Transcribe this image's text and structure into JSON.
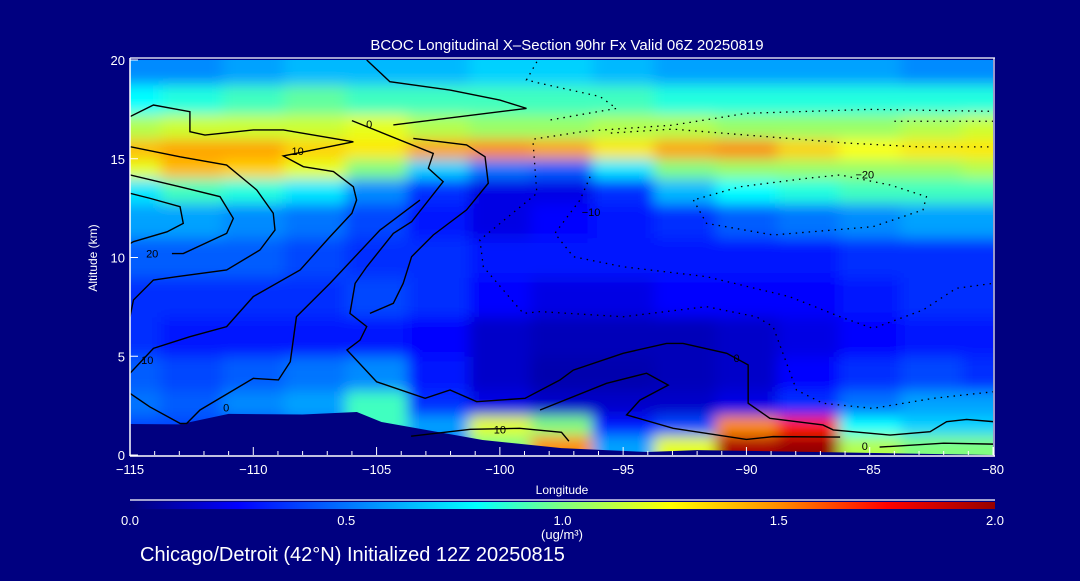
{
  "chart_data": {
    "type": "heatmap",
    "title": "BCOC Longitudinal X–Section 90hr  Fx Valid 06Z 20250819",
    "xlabel": "Longitude",
    "ylabel": "Altitude (km)",
    "xlim": [
      -115,
      -80
    ],
    "ylim": [
      0,
      20
    ],
    "xticks": [
      "−115",
      "−110",
      "−105",
      "−100",
      "−95",
      "−90",
      "−85",
      "−80"
    ],
    "xtick_values": [
      -115,
      -110,
      -105,
      -100,
      -95,
      -90,
      -85,
      -80
    ],
    "yticks": [
      "0",
      "5",
      "10",
      "15",
      "20"
    ],
    "ytick_values": [
      0,
      5,
      10,
      15,
      20
    ],
    "colorbar": {
      "label": "(ug/m³)",
      "range": [
        0,
        2
      ],
      "ticks": [
        "0.0",
        "0.5",
        "1.0",
        "1.5",
        "2.0"
      ],
      "tick_values": [
        0,
        0.5,
        1,
        1.5,
        2
      ],
      "colormap": [
        [
          0,
          "#000078"
        ],
        [
          0.25,
          "#0000ff"
        ],
        [
          0.8,
          "#00ffff"
        ],
        [
          1.0,
          "#80ff80"
        ],
        [
          1.25,
          "#ffff00"
        ],
        [
          1.5,
          "#ff8c00"
        ],
        [
          1.75,
          "#ff0000"
        ],
        [
          2.0,
          "#960000"
        ]
      ]
    },
    "grid_lon": [
      -115,
      -112.5,
      -110,
      -107.5,
      -105,
      -102.5,
      -100,
      -97.5,
      -95,
      -92.5,
      -90,
      -87.5,
      -85,
      -82.5,
      -80
    ],
    "grid_alt": [
      0.5,
      1.5,
      2.5,
      4,
      6,
      8,
      10,
      12,
      13.5,
      14.5,
      15.5,
      16.5,
      18,
      19.5
    ],
    "values": [
      [
        0.2,
        0.2,
        0.2,
        0.3,
        0.4,
        0.5,
        1.0,
        1.5,
        0.6,
        1.2,
        1.95,
        2.0,
        1.1,
        1.0,
        1.0
      ],
      [
        0.4,
        0.4,
        0.4,
        0.5,
        0.9,
        0.6,
        1.2,
        1.0,
        0.3,
        0.4,
        1.5,
        1.7,
        0.8,
        0.7,
        0.7
      ],
      [
        0.5,
        0.45,
        0.55,
        0.6,
        0.9,
        0.35,
        0.2,
        0.15,
        0.15,
        0.15,
        0.2,
        0.35,
        0.5,
        0.6,
        0.6
      ],
      [
        0.45,
        0.4,
        0.45,
        0.5,
        0.55,
        0.3,
        0.15,
        0.1,
        0.1,
        0.12,
        0.15,
        0.25,
        0.35,
        0.4,
        0.35
      ],
      [
        0.35,
        0.3,
        0.3,
        0.3,
        0.3,
        0.25,
        0.15,
        0.12,
        0.12,
        0.12,
        0.15,
        0.2,
        0.25,
        0.3,
        0.3
      ],
      [
        0.35,
        0.35,
        0.35,
        0.35,
        0.4,
        0.35,
        0.25,
        0.2,
        0.2,
        0.25,
        0.25,
        0.25,
        0.3,
        0.35,
        0.35
      ],
      [
        0.45,
        0.45,
        0.45,
        0.4,
        0.35,
        0.35,
        0.3,
        0.3,
        0.3,
        0.3,
        0.3,
        0.3,
        0.35,
        0.35,
        0.35
      ],
      [
        0.6,
        0.6,
        0.55,
        0.5,
        0.4,
        0.3,
        0.2,
        0.25,
        0.3,
        0.35,
        0.45,
        0.5,
        0.55,
        0.6,
        0.6
      ],
      [
        0.75,
        0.9,
        0.85,
        0.75,
        0.55,
        0.35,
        0.2,
        0.2,
        0.35,
        0.65,
        0.8,
        0.85,
        0.9,
        0.9,
        0.9
      ],
      [
        1.2,
        1.4,
        1.35,
        1.2,
        1.0,
        0.7,
        0.5,
        0.45,
        0.75,
        1.0,
        1.05,
        1.05,
        1.05,
        1.05,
        1.1
      ],
      [
        1.4,
        1.45,
        1.45,
        1.35,
        1.3,
        1.45,
        1.5,
        1.45,
        1.3,
        1.45,
        1.5,
        1.35,
        1.25,
        1.3,
        1.3
      ],
      [
        1.1,
        1.15,
        1.15,
        1.15,
        1.2,
        1.1,
        1.05,
        1.05,
        1.1,
        1.1,
        1.05,
        1.05,
        1.05,
        1.1,
        1.15
      ],
      [
        0.8,
        0.85,
        0.9,
        0.95,
        0.9,
        0.9,
        0.9,
        0.9,
        0.9,
        0.85,
        0.85,
        0.85,
        0.85,
        0.85,
        0.85
      ],
      [
        0.55,
        0.55,
        0.6,
        0.65,
        0.65,
        0.65,
        0.7,
        0.7,
        0.65,
        0.6,
        0.6,
        0.6,
        0.6,
        0.55,
        0.55
      ]
    ],
    "terrain": [
      [
        -115,
        1.57
      ],
      [
        -113,
        1.55
      ],
      [
        -111,
        2.08
      ],
      [
        -108,
        2.05
      ],
      [
        -105.8,
        2.18
      ],
      [
        -104.8,
        1.67
      ],
      [
        -103,
        1.27
      ],
      [
        -100.7,
        0.76
      ],
      [
        -97.5,
        0.35
      ],
      [
        -94,
        0.15
      ],
      [
        -92,
        0.25
      ],
      [
        -80,
        0.0
      ]
    ],
    "contours": [
      {
        "style": "solid",
        "label": "10",
        "label_at": [
          -108.2,
          15.4
        ],
        "points": [
          [
            -115,
            17.13
          ],
          [
            -114.05,
            17.72
          ],
          [
            -112.57,
            17.38
          ],
          [
            -112.57,
            16.37
          ],
          [
            -111.96,
            16.2
          ],
          [
            -110,
            16.46
          ],
          [
            -108.78,
            16.46
          ],
          [
            -105.94,
            15.86
          ],
          [
            -108.78,
            15.14
          ],
          [
            -107.97,
            14.6
          ],
          [
            -106.75,
            14.35
          ],
          [
            -105.94,
            13.58
          ],
          [
            -105.81,
            12.91
          ],
          [
            -106,
            12.24
          ],
          [
            -106.89,
            11.05
          ],
          [
            -108.1,
            9.37
          ],
          [
            -110,
            8.02
          ],
          [
            -111.08,
            6.5
          ],
          [
            -112.57,
            5.99
          ],
          [
            -114.05,
            5.4
          ],
          [
            -115,
            4.14
          ]
        ]
      },
      {
        "style": "solid",
        "label": "10",
        "label_at": [
          -114.3,
          4.8
        ],
        "points": []
      },
      {
        "style": "solid",
        "label": "",
        "label_at": null,
        "points": [
          [
            -115,
            13.25
          ],
          [
            -114.2,
            13.0
          ],
          [
            -112.97,
            12.57
          ],
          [
            -112.84,
            11.73
          ],
          [
            -113.5,
            11.3
          ],
          [
            -114.86,
            10.8
          ],
          [
            -115,
            10.7
          ]
        ]
      },
      {
        "style": "solid",
        "label": "20",
        "label_at": [
          -114.1,
          10.2
        ],
        "points": [
          [
            -115,
            14.18
          ],
          [
            -112.97,
            13.58
          ],
          [
            -111.35,
            13.08
          ],
          [
            -110.81,
            11.98
          ],
          [
            -111.08,
            11.22
          ],
          [
            -112.84,
            10.2
          ],
          [
            -113.3,
            10.2
          ]
        ]
      },
      {
        "style": "solid",
        "label": "",
        "label_at": null,
        "points": [
          [
            -115,
            15.61
          ],
          [
            -112.97,
            15.1
          ],
          [
            -111.08,
            14.68
          ],
          [
            -109.86,
            13.42
          ],
          [
            -109.19,
            12.24
          ],
          [
            -109.12,
            11.39
          ],
          [
            -109.73,
            10.38
          ],
          [
            -111.08,
            9.37
          ],
          [
            -113.11,
            9.03
          ],
          [
            -114.05,
            8.86
          ],
          [
            -114.86,
            7.85
          ],
          [
            -115,
            7.0
          ]
        ]
      },
      {
        "style": "solid",
        "label": "0",
        "label_at": [
          -105.3,
          16.75
        ],
        "points": [
          [
            -105.4,
            20
          ],
          [
            -104.46,
            18.9
          ],
          [
            -102.02,
            18.48
          ],
          [
            -100,
            17.97
          ],
          [
            -98.92,
            17.55
          ],
          [
            -104.32,
            16.71
          ]
        ]
      },
      {
        "style": "solid",
        "label": "0",
        "label_at": [
          -90.4,
          4.9
        ],
        "points": [
          [
            -106,
            16.93
          ],
          [
            -102.7,
            15.27
          ],
          [
            -102.9,
            14.52
          ],
          [
            -102.3,
            13.84
          ],
          [
            -103.58,
            11.81
          ],
          [
            -104.32,
            11.22
          ],
          [
            -105.4,
            9.53
          ],
          [
            -105.87,
            8.69
          ],
          [
            -106.08,
            7.17
          ],
          [
            -105.4,
            6.5
          ],
          [
            -105.67,
            5.82
          ],
          [
            -106.2,
            5.32
          ],
          [
            -105,
            3.71
          ],
          [
            -103.03,
            2.87
          ],
          [
            -102.02,
            3.29
          ],
          [
            -100.94,
            2.7
          ],
          [
            -98.98,
            2.87
          ],
          [
            -97.56,
            3.8
          ],
          [
            -97.02,
            4.3
          ],
          [
            -95,
            5.15
          ],
          [
            -93.24,
            5.65
          ],
          [
            -92.57,
            5.65
          ],
          [
            -90.8,
            5.15
          ],
          [
            -89.93,
            4.56
          ],
          [
            -89.93,
            2.62
          ],
          [
            -89.05,
            1.86
          ],
          [
            -86.9,
            1.52
          ],
          [
            -86.48,
            1.27
          ],
          [
            -84.17,
            1.01
          ],
          [
            -82.55,
            1.18
          ],
          [
            -81.88,
            1.69
          ],
          [
            -81.07,
            1.8
          ],
          [
            -80,
            1.69
          ]
        ]
      },
      {
        "style": "solid",
        "label": "",
        "label_at": null,
        "points": [
          [
            -103.51,
            16.03
          ],
          [
            -101.35,
            15.7
          ],
          [
            -100.6,
            15.1
          ],
          [
            -100.47,
            13.76
          ],
          [
            -101.35,
            12.41
          ],
          [
            -102.7,
            11.14
          ],
          [
            -103.58,
            10.04
          ],
          [
            -103.92,
            8.69
          ],
          [
            -104.32,
            7.68
          ],
          [
            -105.27,
            7.17
          ]
        ]
      },
      {
        "style": "solid",
        "label": "0",
        "label_at": [
          -111.1,
          2.4
        ],
        "points": [
          [
            -115,
            3.12
          ],
          [
            -114.2,
            2.44
          ],
          [
            -112.97,
            1.6
          ],
          [
            -112.7,
            1.6
          ],
          [
            -112.16,
            2.28
          ],
          [
            -110,
            3.88
          ],
          [
            -108.98,
            3.8
          ],
          [
            -108.5,
            4.72
          ],
          [
            -108.25,
            7.0
          ],
          [
            -106.89,
            8.69
          ],
          [
            -104.86,
            11.39
          ],
          [
            -103.24,
            12.91
          ]
        ]
      },
      {
        "style": "solid",
        "label": "",
        "label_at": null,
        "points": [
          [
            -98.37,
            2.28
          ],
          [
            -95.67,
            3.63
          ],
          [
            -94.05,
            4.14
          ],
          [
            -93.17,
            3.54
          ],
          [
            -94.32,
            2.78
          ],
          [
            -94.86,
            2.03
          ],
          [
            -92.97,
            1.35
          ],
          [
            -90,
            0.79
          ],
          [
            -88.92,
            0.93
          ],
          [
            -86.2,
            0.91
          ]
        ]
      },
      {
        "style": "solid",
        "label": "10",
        "label_at": [
          -100.0,
          1.3
        ],
        "points": [
          [
            -103.6,
            0.95
          ],
          [
            -101.2,
            1.3
          ],
          [
            -99.2,
            1.35
          ],
          [
            -97.5,
            1.15
          ],
          [
            -97.2,
            0.7
          ]
        ]
      },
      {
        "style": "solid",
        "label": "0",
        "label_at": [
          -85.2,
          0.45
        ],
        "points": [
          [
            -84.6,
            0.4
          ],
          [
            -82,
            0.6
          ],
          [
            -80,
            0.55
          ]
        ]
      },
      {
        "style": "dotted",
        "label": "",
        "label_at": null,
        "points": [
          [
            -98.5,
            19.91
          ],
          [
            -98.92,
            18.99
          ],
          [
            -98.37,
            18.82
          ],
          [
            -95.94,
            18.15
          ],
          [
            -95.27,
            17.55
          ],
          [
            -97.97,
            16.96
          ]
        ]
      },
      {
        "style": "dotted",
        "label": "",
        "label_at": null,
        "points": [
          [
            -98.6,
            16.0
          ],
          [
            -96.5,
            16.4
          ],
          [
            -93,
            16.7
          ],
          [
            -90,
            17.3
          ],
          [
            -85,
            17.5
          ],
          [
            -80,
            17.4
          ]
        ]
      },
      {
        "style": "dotted",
        "label": "",
        "label_at": null,
        "points": [
          [
            -98.65,
            15.78
          ],
          [
            -98.5,
            13.25
          ],
          [
            -100.81,
            10.89
          ],
          [
            -100.67,
            9.53
          ],
          [
            -99.05,
            7.17
          ],
          [
            -98.37,
            7.26
          ],
          [
            -95,
            7.0
          ],
          [
            -91.62,
            7.51
          ],
          [
            -89.6,
            7.0
          ],
          [
            -88.92,
            6.5
          ],
          [
            -87.97,
            3.29
          ],
          [
            -86.9,
            2.62
          ],
          [
            -84.87,
            2.36
          ],
          [
            -82.42,
            2.87
          ],
          [
            -80,
            3.2
          ]
        ]
      },
      {
        "style": "dotted",
        "label": "−10",
        "label_at": [
          -96.3,
          12.3
        ],
        "points": [
          [
            -96.34,
            14.09
          ],
          [
            -96.75,
            12.91
          ],
          [
            -97.77,
            11.22
          ],
          [
            -97.02,
            10.04
          ],
          [
            -95,
            9.53
          ],
          [
            -91.62,
            9.03
          ],
          [
            -88.26,
            8.02
          ],
          [
            -86.2,
            7.0
          ],
          [
            -84.87,
            6.41
          ],
          [
            -82.84,
            7.34
          ],
          [
            -81.49,
            8.44
          ],
          [
            -80,
            8.69
          ]
        ]
      },
      {
        "style": "dotted",
        "label": "−20",
        "label_at": [
          -85.2,
          14.2
        ],
        "points": [
          [
            -92.15,
            12.91
          ],
          [
            -91.62,
            11.73
          ],
          [
            -88.92,
            11.14
          ],
          [
            -84.87,
            11.56
          ],
          [
            -82.84,
            12.41
          ],
          [
            -82.7,
            13.08
          ],
          [
            -84.17,
            13.67
          ],
          [
            -86.2,
            14.18
          ],
          [
            -87.55,
            14.01
          ],
          [
            -90.27,
            13.58
          ],
          [
            -92.15,
            12.91
          ]
        ]
      },
      {
        "style": "dotted",
        "label": "",
        "label_at": null,
        "points": [
          [
            -95.5,
            16.3
          ],
          [
            -93,
            16.5
          ],
          [
            -90,
            16.2
          ],
          [
            -86,
            15.8
          ],
          [
            -83,
            15.6
          ],
          [
            -80,
            15.6
          ]
        ]
      },
      {
        "style": "dotted",
        "label": "",
        "label_at": null,
        "points": [
          [
            -84,
            16.9
          ],
          [
            -80,
            16.9
          ]
        ]
      }
    ]
  },
  "footer": "Chicago/Detroit (42°N) Initialized 12Z 20250815"
}
